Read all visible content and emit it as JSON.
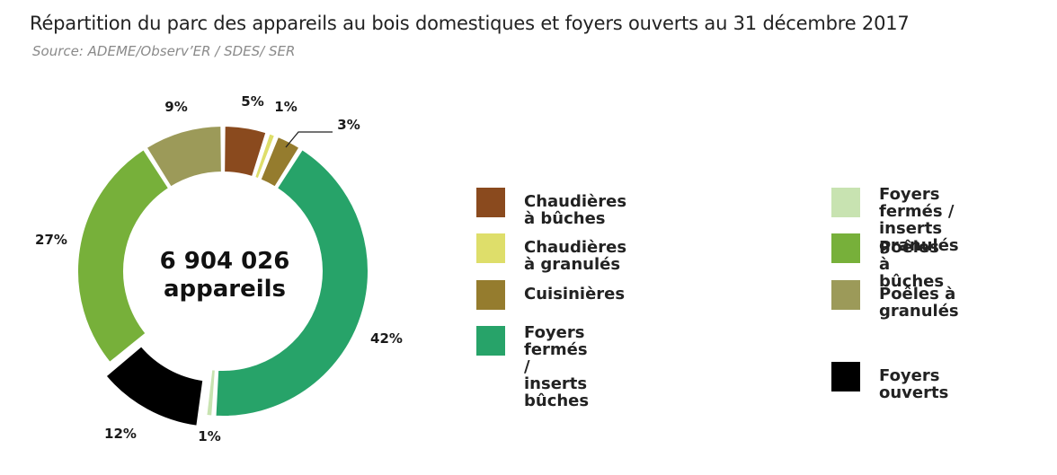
{
  "title": "Répartition du parc des appareils au bois domestiques et foyers ouverts au 31 décembre 2017",
  "subtitle": "Source: ADEME/Observ’ER / SDES/ SER",
  "center_label": {
    "line1": "6 904 026",
    "line2": "appareils"
  },
  "chart_data": {
    "type": "pie",
    "variant": "donut",
    "total": 6904026,
    "unit": "appareils",
    "slices": [
      {
        "name": "Chaudières à bûches",
        "value": 5,
        "label": "5%",
        "color": "#8a4a1e"
      },
      {
        "name": "Chaudières à granulés",
        "value": 1,
        "label": "1%",
        "color": "#dede6a"
      },
      {
        "name": "Cuisinières",
        "value": 3,
        "label": "3%",
        "color": "#957c2e"
      },
      {
        "name": "Foyers fermés / inserts bûches",
        "value": 42,
        "label": "42%",
        "color": "#27a369"
      },
      {
        "name": "Foyers fermés / inserts granulés",
        "value": 1,
        "label": "1%",
        "color": "#c8e3b1"
      },
      {
        "name": "Foyers ouverts",
        "value": 12,
        "label": "12%",
        "color": "#000000",
        "exploded": true
      },
      {
        "name": "Poêles à bûches",
        "value": 27,
        "label": "27%",
        "color": "#77b03a"
      },
      {
        "name": "Poêles à granulés",
        "value": 9,
        "label": "9%",
        "color": "#9c9a59"
      }
    ]
  },
  "legend": [
    {
      "label": "Chaudières à bûches",
      "color": "#8a4a1e"
    },
    {
      "label": "Chaudières à granulés",
      "color": "#dede6a"
    },
    {
      "label": "Cuisinières",
      "color": "#957c2e"
    },
    {
      "label": "Foyers fermés /\ninserts bûches",
      "color": "#27a369"
    },
    {
      "label": "Foyers fermés /\ninserts granulés",
      "color": "#c8e3b1"
    },
    {
      "label": "Poêles à bûches",
      "color": "#77b03a"
    },
    {
      "label": "Poêles à granulés",
      "color": "#9c9a59"
    },
    {
      "label": "Foyers ouverts",
      "color": "#000000"
    }
  ]
}
